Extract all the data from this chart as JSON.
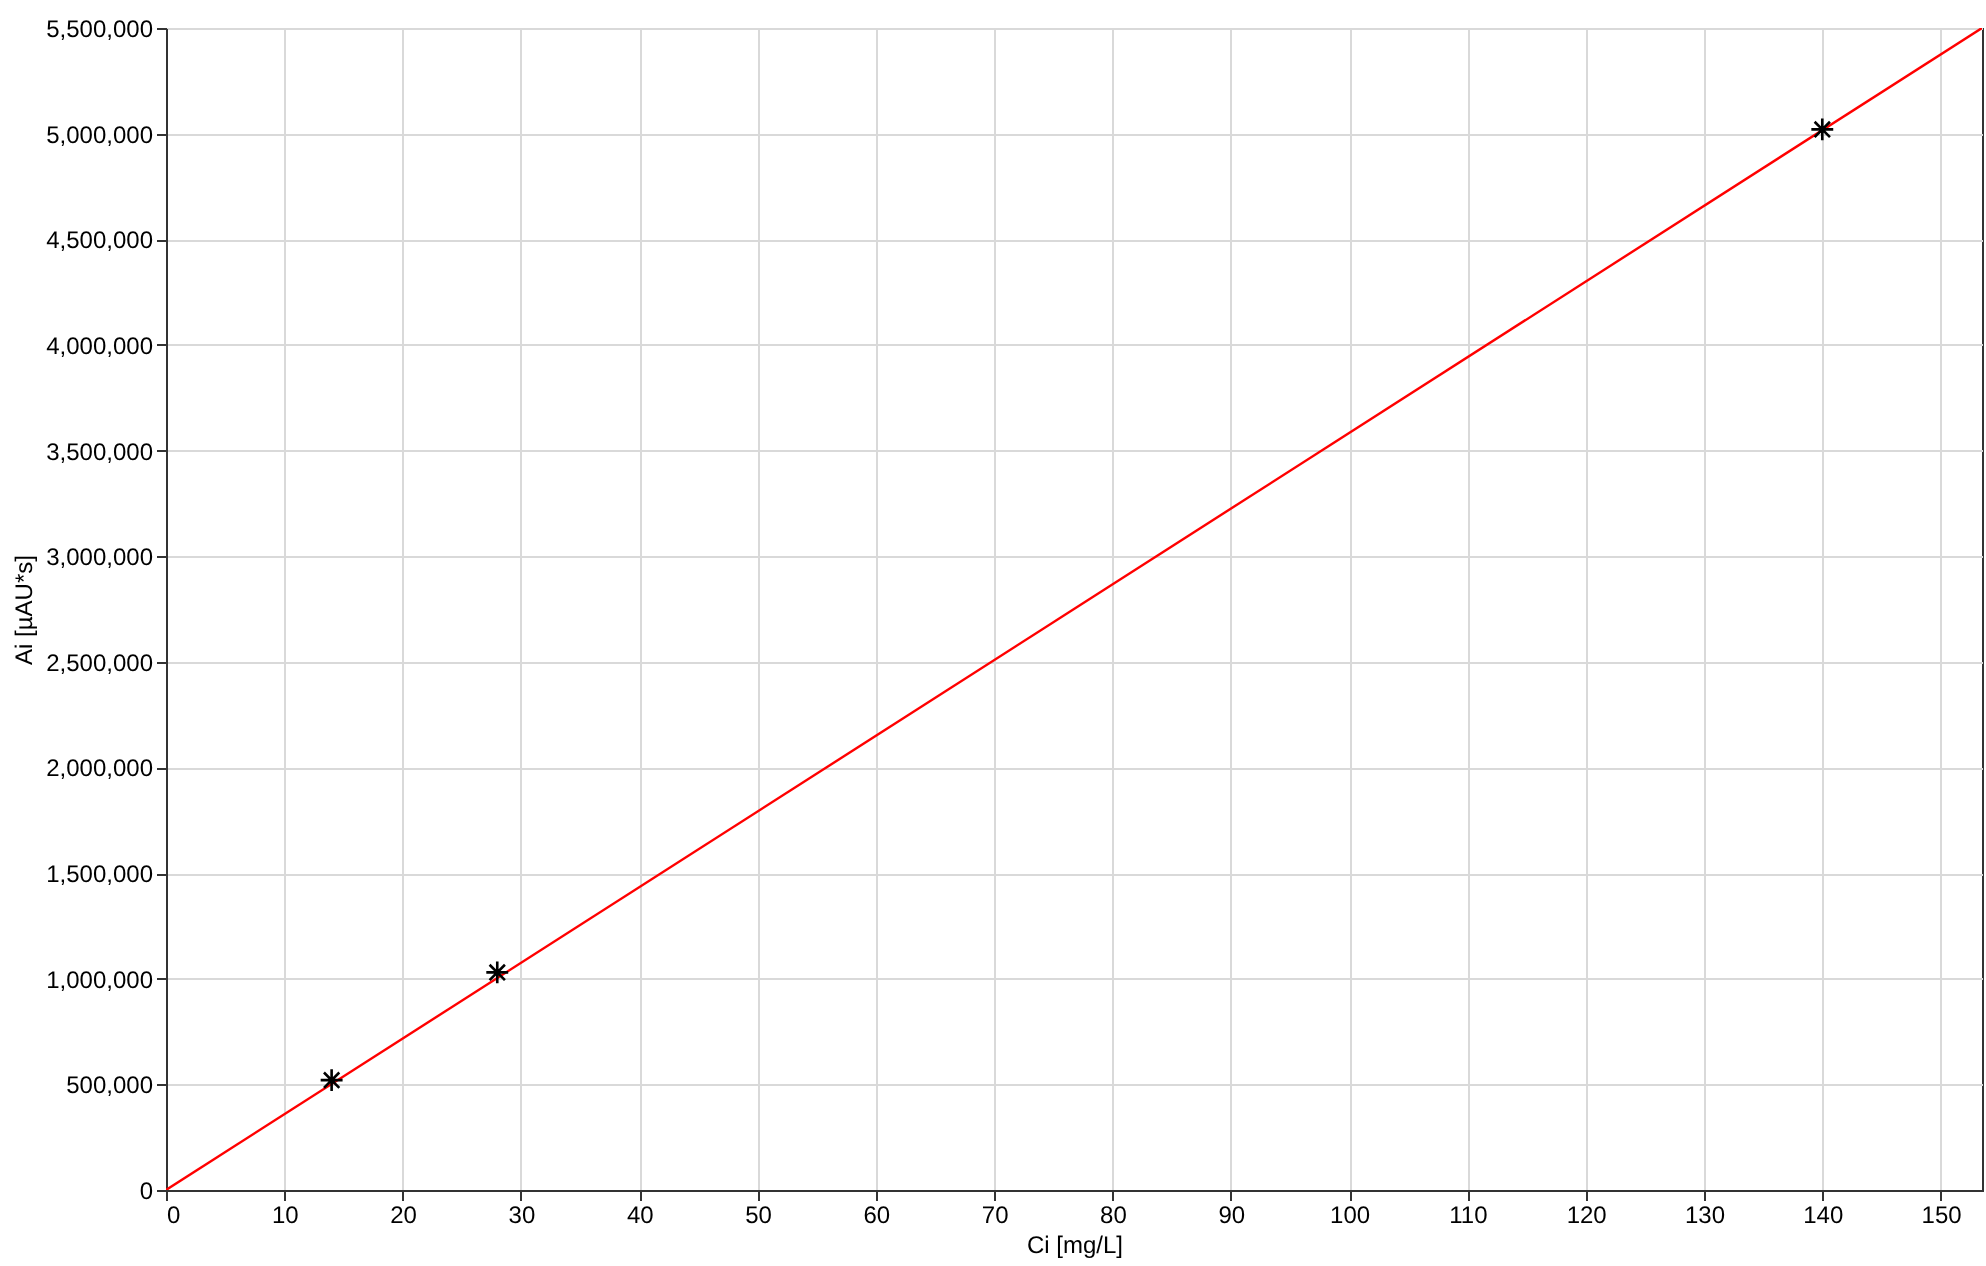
{
  "chart_data": {
    "type": "scatter",
    "xlabel": "Ci [mg/L]",
    "ylabel": "Ai [µAU*s]",
    "xlim": [
      0,
      153.5
    ],
    "xticks": [
      0,
      10,
      20,
      30,
      40,
      50,
      60,
      70,
      80,
      90,
      100,
      110,
      120,
      130,
      140,
      150
    ],
    "ylim": [
      0,
      5500000
    ],
    "yticks": [
      0,
      {
        "value": 500000,
        "label": "500,000"
      },
      {
        "value": 1000000,
        "label": "1,000,000"
      },
      {
        "value": 1500000,
        "label": "1,500,000"
      },
      {
        "value": 2000000,
        "label": "2,000,000"
      },
      {
        "value": 2500000,
        "label": "2,500,000"
      },
      {
        "value": 3000000,
        "label": "3,000,000"
      },
      {
        "value": 3500000,
        "label": "3,500,000"
      },
      {
        "value": 4000000,
        "label": "4,000,000"
      },
      {
        "value": 4500000,
        "label": "4,500,000"
      },
      {
        "value": 5000000,
        "label": "5,000,000"
      },
      {
        "value": 5500000,
        "label": "5,500,000"
      }
    ],
    "grid": true,
    "series": [
      {
        "color": "#000000",
        "marker": "cross",
        "x": [
          14,
          28,
          140
        ],
        "values": [
          520000,
          1030000,
          5020000
        ]
      },
      {
        "type": "line",
        "color": "#ff0000",
        "line_style": "solid",
        "x": [
          0,
          153.5
        ],
        "values": [
          0,
          5500000
        ]
      }
    ]
  }
}
